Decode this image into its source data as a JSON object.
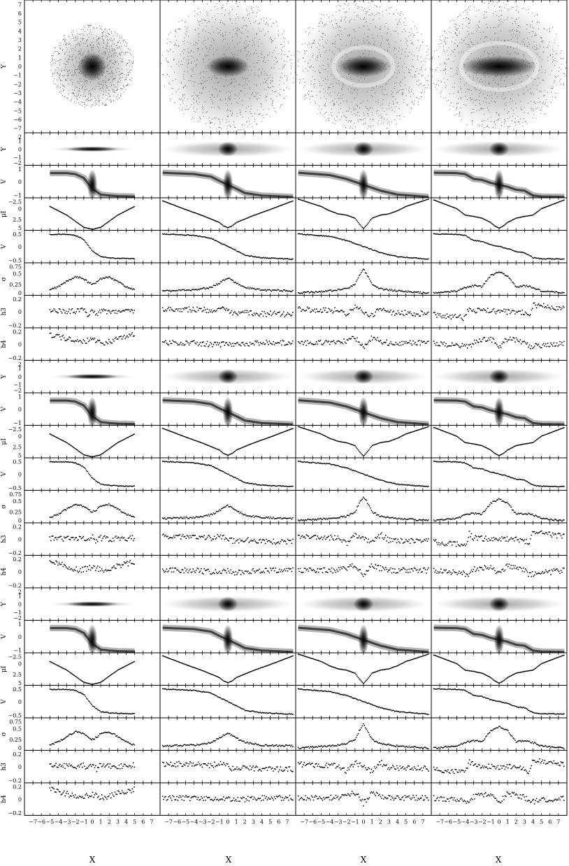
{
  "chart_data": {
    "type": "scatter",
    "title": "",
    "columns": 4,
    "xlabel": "X",
    "xlim": [
      -8,
      8
    ],
    "x_ticks": [
      -7,
      -6,
      -5,
      -4,
      -3,
      -2,
      -1,
      0,
      1,
      2,
      3,
      4,
      5,
      6,
      7
    ],
    "x_tick_labels": [
      "−7",
      "−6",
      "−5",
      "−4",
      "−3",
      "−2",
      "−1",
      "0",
      "1",
      "2",
      "3",
      "4",
      "5",
      "6",
      "7"
    ],
    "panel_rows": [
      {
        "kind": "face-on",
        "ylabel": "Y",
        "ylim": [
          -8,
          8
        ],
        "y_tick_labels": [
          "7",
          "6",
          "5",
          "4",
          "3",
          "2",
          "1",
          "0",
          "−1",
          "−2",
          "−3",
          "−4",
          "−5",
          "−6",
          "−7"
        ]
      },
      {
        "kind": "edge-on",
        "ylabel": "Y",
        "ylim": [
          -2,
          2
        ],
        "y_tick_labels": [
          "2",
          "1",
          "0",
          "−1",
          "−2"
        ]
      },
      {
        "kind": "pv",
        "ylabel": "V",
        "ylim": [
          -1,
          1.5
        ],
        "y_tick_labels": [
          "1",
          "0",
          "−1"
        ]
      },
      {
        "kind": "mu",
        "ylabel": "μI",
        "ylim": [
          -2.5,
          5
        ],
        "y_tick_labels": [
          "−2.5",
          "0",
          "2.5",
          "5"
        ]
      },
      {
        "kind": "v",
        "ylabel": "V",
        "ylim": [
          -0.8,
          0.8
        ],
        "y_tick_labels": [
          "0.5",
          "0",
          "−0.5"
        ]
      },
      {
        "kind": "sigma",
        "ylabel": "σ",
        "ylim": [
          0,
          0.75
        ],
        "y_tick_labels": [
          "0.75",
          "0.5",
          "0.25",
          "0"
        ]
      },
      {
        "kind": "h",
        "ylabel": "h3",
        "ylim": [
          -0.3,
          0.3
        ],
        "y_tick_labels": [
          "0.2",
          "0",
          "−0.2"
        ]
      },
      {
        "kind": "h",
        "ylabel": "h4",
        "ylim": [
          -0.3,
          0.3
        ],
        "y_tick_labels": [
          "0.2",
          "0",
          "−0.2"
        ]
      },
      {
        "kind": "edge-on",
        "ylabel": "Y",
        "ylim": [
          -2,
          2
        ],
        "y_tick_labels": [
          "2",
          "1",
          "0",
          "−1",
          "−2"
        ]
      },
      {
        "kind": "pv",
        "ylabel": "V",
        "ylim": [
          -1,
          1.5
        ],
        "y_tick_labels": [
          "1",
          "0",
          "−1"
        ]
      },
      {
        "kind": "mu",
        "ylabel": "μI",
        "ylim": [
          -2.5,
          5
        ],
        "y_tick_labels": [
          "−2.5",
          "0",
          "2.5",
          "5"
        ]
      },
      {
        "kind": "v",
        "ylabel": "V",
        "ylim": [
          -0.8,
          0.8
        ],
        "y_tick_labels": [
          "0.5",
          "0",
          "−0.5"
        ]
      },
      {
        "kind": "sigma",
        "ylabel": "σ",
        "ylim": [
          0,
          0.75
        ],
        "y_tick_labels": [
          "0.75",
          "0.5",
          "0.25",
          "0"
        ]
      },
      {
        "kind": "h",
        "ylabel": "h3",
        "ylim": [
          -0.3,
          0.3
        ],
        "y_tick_labels": [
          "0.2",
          "0",
          "−0.2"
        ]
      },
      {
        "kind": "h",
        "ylabel": "h4",
        "ylim": [
          -0.3,
          0.3
        ],
        "y_tick_labels": [
          "0.2",
          "0",
          "−0.2"
        ]
      },
      {
        "kind": "edge-on",
        "ylabel": "Y",
        "ylim": [
          -2,
          2
        ],
        "y_tick_labels": [
          "2",
          "1",
          "0",
          "−1",
          "−2"
        ]
      },
      {
        "kind": "pv",
        "ylabel": "V",
        "ylim": [
          -1,
          1.5
        ],
        "y_tick_labels": [
          "1",
          "0",
          "−1"
        ]
      },
      {
        "kind": "mu",
        "ylabel": "μI",
        "ylim": [
          -2.5,
          5
        ],
        "y_tick_labels": [
          "−2.5",
          "0",
          "2.5",
          "5"
        ]
      },
      {
        "kind": "v",
        "ylabel": "V",
        "ylim": [
          -0.8,
          0.8
        ],
        "y_tick_labels": [
          "0.5",
          "0",
          "−0.5"
        ]
      },
      {
        "kind": "sigma",
        "ylabel": "σ",
        "ylim": [
          0,
          0.75
        ],
        "y_tick_labels": [
          "0.75",
          "0.5",
          "0.25",
          "0"
        ]
      },
      {
        "kind": "h",
        "ylabel": "h3",
        "ylim": [
          -0.3,
          0.3
        ],
        "y_tick_labels": [
          "0.2",
          "0",
          "−0.2"
        ]
      },
      {
        "kind": "h",
        "ylabel": "h4",
        "ylim": [
          -0.3,
          0.3
        ],
        "y_tick_labels": [
          "0.2",
          "0",
          "−0.2"
        ]
      }
    ],
    "column_profiles": [
      {
        "r_edge": 5,
        "extent": 5,
        "mu": [
          [
            -5,
            -0.5
          ],
          [
            -3,
            1.5
          ],
          [
            -1,
            4.3
          ],
          [
            0,
            4.8
          ],
          [
            1,
            4.3
          ],
          [
            3,
            1.5
          ],
          [
            5,
            -0.5
          ]
        ],
        "v": [
          [
            -5,
            0.6
          ],
          [
            -3,
            0.6
          ],
          [
            -2,
            0.55
          ],
          [
            -1,
            0.35
          ],
          [
            0,
            -0.2
          ],
          [
            1,
            -0.5
          ],
          [
            2,
            -0.55
          ],
          [
            3,
            -0.58
          ],
          [
            5,
            -0.6
          ]
        ],
        "sigma": [
          [
            -5,
            0.12
          ],
          [
            -4,
            0.2
          ],
          [
            -3,
            0.32
          ],
          [
            -2,
            0.43
          ],
          [
            -1,
            0.38
          ],
          [
            -0.5,
            0.3
          ],
          [
            0,
            0.25
          ],
          [
            0.5,
            0.3
          ],
          [
            1,
            0.38
          ],
          [
            2,
            0.43
          ],
          [
            3,
            0.32
          ],
          [
            4,
            0.2
          ],
          [
            5,
            0.12
          ]
        ],
        "h3": [
          [
            -5,
            0.02
          ],
          [
            -2,
            0.0
          ],
          [
            -1,
            0.02
          ],
          [
            -0.5,
            -0.05
          ],
          [
            0,
            0.05
          ],
          [
            0.5,
            -0.05
          ],
          [
            1,
            0.02
          ],
          [
            2,
            0
          ],
          [
            5,
            0.02
          ]
        ],
        "h4": [
          [
            -5,
            0.18
          ],
          [
            -3,
            0.1
          ],
          [
            -1.5,
            0.02
          ],
          [
            0,
            0.08
          ],
          [
            1.5,
            0.02
          ],
          [
            3,
            0.1
          ],
          [
            5,
            0.18
          ]
        ]
      },
      {
        "r_edge": 8,
        "extent": 7.7,
        "mu": [
          [
            -7.7,
            -1.8
          ],
          [
            -5,
            0.2
          ],
          [
            -3,
            1.6
          ],
          [
            -2,
            2.4
          ],
          [
            -1,
            3.2
          ],
          [
            -0.5,
            4.0
          ],
          [
            0,
            4.4
          ],
          [
            0.5,
            4.0
          ],
          [
            1,
            3.2
          ],
          [
            2,
            2.4
          ],
          [
            3,
            1.6
          ],
          [
            5,
            0.2
          ],
          [
            7.7,
            -1.8
          ]
        ],
        "v": [
          [
            -7.7,
            0.62
          ],
          [
            -4,
            0.55
          ],
          [
            -2,
            0.42
          ],
          [
            -1,
            0.2
          ],
          [
            0,
            0
          ],
          [
            1,
            -0.2
          ],
          [
            2,
            -0.42
          ],
          [
            4,
            -0.55
          ],
          [
            7.7,
            -0.62
          ]
        ],
        "sigma": [
          [
            -7.7,
            0.1
          ],
          [
            -4,
            0.12
          ],
          [
            -2,
            0.18
          ],
          [
            -1,
            0.28
          ],
          [
            0,
            0.4
          ],
          [
            1,
            0.28
          ],
          [
            2,
            0.18
          ],
          [
            4,
            0.12
          ],
          [
            7.7,
            0.1
          ]
        ],
        "h3": [
          [
            -7.7,
            0.05
          ],
          [
            -4,
            0.04
          ],
          [
            -2,
            0.02
          ],
          [
            -1,
            0.06
          ],
          [
            0,
            0
          ],
          [
            1,
            -0.06
          ],
          [
            2,
            -0.02
          ],
          [
            4,
            -0.04
          ],
          [
            7.7,
            -0.05
          ]
        ],
        "h4": [
          [
            -7.7,
            0.02
          ],
          [
            -4,
            0.02
          ],
          [
            -1,
            -0.02
          ],
          [
            0,
            0.02
          ],
          [
            1,
            -0.02
          ],
          [
            4,
            0.02
          ],
          [
            7.7,
            0.02
          ]
        ]
      },
      {
        "r_edge": 8,
        "extent": 7.7,
        "mu": [
          [
            -7.7,
            -2.2
          ],
          [
            -5,
            -0.5
          ],
          [
            -4,
            0.5
          ],
          [
            -3,
            1.2
          ],
          [
            -2,
            1.5
          ],
          [
            -1,
            2.2
          ],
          [
            -0.5,
            3.5
          ],
          [
            0,
            4.6
          ],
          [
            0.5,
            3.5
          ],
          [
            1,
            2.2
          ],
          [
            2,
            1.5
          ],
          [
            3,
            1.2
          ],
          [
            4,
            0.5
          ],
          [
            5,
            -0.5
          ],
          [
            7.7,
            -2.2
          ]
        ],
        "v": [
          [
            -7.7,
            0.62
          ],
          [
            -4,
            0.5
          ],
          [
            -2,
            0.3
          ],
          [
            0,
            0
          ],
          [
            2,
            -0.3
          ],
          [
            4,
            -0.5
          ],
          [
            7.7,
            -0.62
          ]
        ],
        "sigma": [
          [
            -7.7,
            0.05
          ],
          [
            -4,
            0.1
          ],
          [
            -2,
            0.15
          ],
          [
            -1,
            0.25
          ],
          [
            -0.5,
            0.45
          ],
          [
            0,
            0.6
          ],
          [
            0.5,
            0.45
          ],
          [
            1,
            0.25
          ],
          [
            2,
            0.15
          ],
          [
            4,
            0.1
          ],
          [
            7.7,
            0.05
          ]
        ],
        "h3": [
          [
            -7.7,
            0.04
          ],
          [
            -3,
            0.02
          ],
          [
            -2,
            -0.08
          ],
          [
            -1,
            0.08
          ],
          [
            0,
            0
          ],
          [
            1,
            -0.08
          ],
          [
            2,
            0.08
          ],
          [
            3,
            -0.02
          ],
          [
            7.7,
            -0.04
          ]
        ],
        "h4": [
          [
            -7.7,
            0.02
          ],
          [
            -3,
            0.02
          ],
          [
            -2,
            0.06
          ],
          [
            -1,
            0.12
          ],
          [
            0,
            -0.08
          ],
          [
            1,
            0.12
          ],
          [
            2,
            0.06
          ],
          [
            3,
            0.02
          ],
          [
            7.7,
            0.02
          ]
        ]
      },
      {
        "r_edge": 8,
        "extent": 7.7,
        "mu": [
          [
            -7.7,
            -2
          ],
          [
            -5,
            0
          ],
          [
            -4,
            1.5
          ],
          [
            -3,
            1.8
          ],
          [
            -2,
            2.2
          ],
          [
            -1,
            3.2
          ],
          [
            -0.5,
            4.0
          ],
          [
            0,
            4.5
          ],
          [
            0.5,
            4.0
          ],
          [
            1,
            3.2
          ],
          [
            2,
            2.2
          ],
          [
            3,
            1.8
          ],
          [
            4,
            1.5
          ],
          [
            5,
            0
          ],
          [
            7.7,
            -2
          ]
        ],
        "v": [
          [
            -7.7,
            0.62
          ],
          [
            -5,
            0.6
          ],
          [
            -4,
            0.55
          ],
          [
            -3,
            0.3
          ],
          [
            -2,
            0.25
          ],
          [
            -1,
            0.1
          ],
          [
            0,
            0
          ],
          [
            1,
            -0.1
          ],
          [
            2,
            -0.25
          ],
          [
            3,
            -0.3
          ],
          [
            4,
            -0.55
          ],
          [
            5,
            -0.6
          ],
          [
            7.7,
            -0.62
          ]
        ],
        "sigma": [
          [
            -7.7,
            0.05
          ],
          [
            -5,
            0.1
          ],
          [
            -4,
            0.18
          ],
          [
            -3,
            0.22
          ],
          [
            -2,
            0.2
          ],
          [
            -1,
            0.45
          ],
          [
            0,
            0.55
          ],
          [
            1,
            0.45
          ],
          [
            2,
            0.2
          ],
          [
            3,
            0.22
          ],
          [
            4,
            0.18
          ],
          [
            5,
            0.1
          ],
          [
            7.7,
            0.05
          ]
        ],
        "h3": [
          [
            -7.7,
            -0.05
          ],
          [
            -4,
            -0.12
          ],
          [
            -3.5,
            0.1
          ],
          [
            -3,
            0.02
          ],
          [
            0,
            0
          ],
          [
            3,
            -0.02
          ],
          [
            3.5,
            -0.1
          ],
          [
            4,
            0.12
          ],
          [
            7.7,
            0.05
          ]
        ],
        "h4": [
          [
            -7.7,
            0.02
          ],
          [
            -3.5,
            -0.05
          ],
          [
            -3,
            0.04
          ],
          [
            -1,
            0.1
          ],
          [
            0,
            -0.05
          ],
          [
            1,
            0.1
          ],
          [
            3,
            0.04
          ],
          [
            3.5,
            -0.05
          ],
          [
            7.7,
            0.02
          ]
        ]
      }
    ],
    "grid": false,
    "legend": "none"
  }
}
